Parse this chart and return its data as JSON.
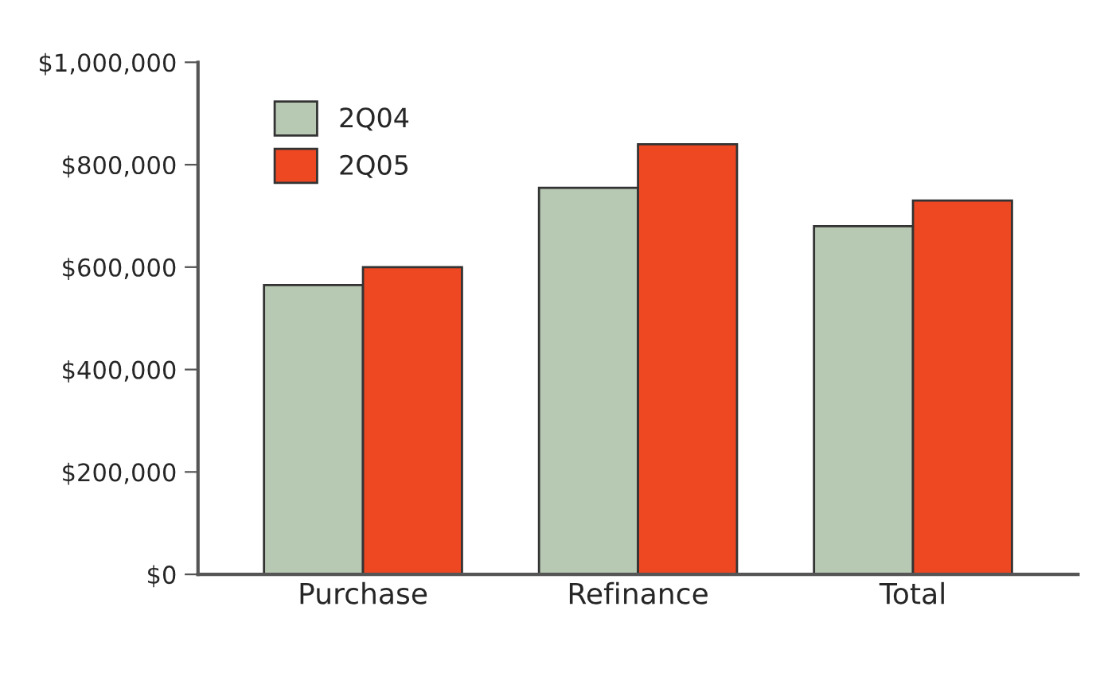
{
  "chart_data": {
    "type": "bar",
    "categories": [
      "Purchase",
      "Refinance",
      "Total"
    ],
    "series": [
      {
        "name": "2Q04",
        "color": "#b8c9b3",
        "values": [
          565000,
          755000,
          680000
        ]
      },
      {
        "name": "2Q05",
        "color": "#ee4823",
        "values": [
          600000,
          840000,
          730000
        ]
      }
    ],
    "ylim": [
      0,
      1000000
    ],
    "yticks": [
      {
        "value": 0,
        "label": "$0"
      },
      {
        "value": 200000,
        "label": "$200,000"
      },
      {
        "value": 400000,
        "label": "$400,000"
      },
      {
        "value": 600000,
        "label": "$600,000"
      },
      {
        "value": 800000,
        "label": "$800,000"
      },
      {
        "value": 1000000,
        "label": "$1,000,000"
      }
    ],
    "grid": false,
    "legend": "top left"
  }
}
